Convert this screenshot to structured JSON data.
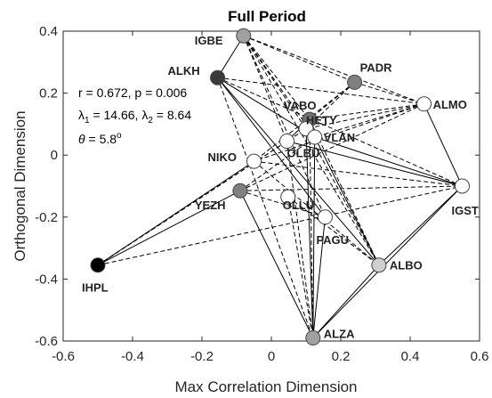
{
  "chart_data": {
    "type": "scatter",
    "title": "Full Period",
    "xlabel": "Max Correlation Dimension",
    "ylabel": "Orthogonal Dimension",
    "xlim": [
      -0.6,
      0.6
    ],
    "ylim": [
      -0.6,
      0.4
    ],
    "x_ticks": [
      -0.6,
      -0.4,
      -0.2,
      0,
      0.2,
      0.4,
      0.6
    ],
    "y_ticks": [
      -0.6,
      -0.4,
      -0.2,
      0,
      0.2,
      0.4
    ],
    "x_tick_labels": [
      "-0.6",
      "-0.4",
      "-0.2",
      "0",
      "0.2",
      "0.4",
      "0.6"
    ],
    "y_tick_labels": [
      "-0.6",
      "-0.4",
      "-0.2",
      "0",
      "0.2",
      "0.4"
    ],
    "annotations": {
      "line1": "r = 0.672, p = 0.006",
      "lambda_sym": "λ",
      "lambda1_sub": "1",
      "lambda1_val": " = 14.66, ",
      "lambda2_sub": "2",
      "lambda2_val": " = 8.64",
      "theta_sym": "θ",
      "theta_val": " = 5.8",
      "theta_sup": "o"
    },
    "points": [
      {
        "id": "IGBE",
        "x": -0.08,
        "y": 0.385,
        "fill": "#a0a0a0",
        "label_dx": -55,
        "label_dy": 10
      },
      {
        "id": "ALKH",
        "x": -0.155,
        "y": 0.25,
        "fill": "#3a3a3a",
        "label_dx": -56,
        "label_dy": -3
      },
      {
        "id": "PADR",
        "x": 0.24,
        "y": 0.235,
        "fill": "#808080",
        "label_dx": 6,
        "label_dy": -12
      },
      {
        "id": "ALMO",
        "x": 0.44,
        "y": 0.165,
        "fill": "#ffffff",
        "label_dx": 10,
        "label_dy": 5
      },
      {
        "id": "VABO",
        "x": 0.11,
        "y": 0.115,
        "fill": "#707070",
        "label_dx": -29,
        "label_dy": -11
      },
      {
        "id": "HETY",
        "x": 0.1,
        "y": 0.085,
        "fill": "#ffffff",
        "label_dx": 0,
        "label_dy": -5
      },
      {
        "id": "VLAN",
        "x": 0.125,
        "y": 0.058,
        "fill": "#ffffff",
        "label_dx": 10,
        "label_dy": 5
      },
      {
        "id": "OLBU",
        "x": 0.045,
        "y": 0.045,
        "fill": "#ffffff",
        "label_dx": 0,
        "label_dy": 18
      },
      {
        "id": "NIKO",
        "x": -0.05,
        "y": -0.02,
        "fill": "#ffffff",
        "label_dx": -52,
        "label_dy": 0
      },
      {
        "id": "IGST",
        "x": 0.55,
        "y": -0.1,
        "fill": "#ffffff",
        "label_dx": -12,
        "label_dy": 32
      },
      {
        "id": "YEZH",
        "x": -0.09,
        "y": -0.115,
        "fill": "#808080",
        "label_dx": -51,
        "label_dy": 21
      },
      {
        "id": "OLLU",
        "x": 0.048,
        "y": -0.135,
        "fill": "#ffffff",
        "label_dx": -6,
        "label_dy": 14
      },
      {
        "id": "PAGU",
        "x": 0.155,
        "y": -0.2,
        "fill": "#ffffff",
        "label_dx": -10,
        "label_dy": 30
      },
      {
        "id": "IHPL",
        "x": -0.5,
        "y": -0.355,
        "fill": "#000000",
        "label_dx": -18,
        "label_dy": 30
      },
      {
        "id": "ALBO",
        "x": 0.31,
        "y": -0.355,
        "fill": "#d0d0d0",
        "label_dx": 12,
        "label_dy": 5
      },
      {
        "id": "ALZA",
        "x": 0.12,
        "y": -0.59,
        "fill": "#a0a0a0",
        "label_dx": 12,
        "label_dy": 0
      }
    ],
    "solid_edges": [
      [
        "IGBE",
        "ALKH"
      ],
      [
        "ALKH",
        "VLAN"
      ],
      [
        "ALKH",
        "PAGU"
      ],
      [
        "ALKH",
        "ALBO"
      ],
      [
        "ALMO",
        "IGST"
      ],
      [
        "IGST",
        "ALBO"
      ],
      [
        "ALBO",
        "ALZA"
      ],
      [
        "VLAN",
        "IGST"
      ],
      [
        "VLAN",
        "ALZA"
      ],
      [
        "VLAN",
        "ALBO"
      ],
      [
        "OLBU",
        "VABO"
      ],
      [
        "OLBU",
        "IGST"
      ],
      [
        "IHPL",
        "YEZH"
      ],
      [
        "IHPL",
        "NIKO"
      ],
      [
        "YEZH",
        "ALZA"
      ],
      [
        "PAGU",
        "ALZA"
      ],
      [
        "ALZA",
        "IGST"
      ],
      [
        "HETY",
        "ALZA"
      ]
    ],
    "dashed_edges": [
      [
        "IGBE",
        "PADR"
      ],
      [
        "IGBE",
        "ALMO"
      ],
      [
        "IGBE",
        "OLBU"
      ],
      [
        "IGBE",
        "VLAN"
      ],
      [
        "IGBE",
        "HETY"
      ],
      [
        "IGBE",
        "PAGU"
      ],
      [
        "IGBE",
        "ALBO"
      ],
      [
        "IGBE",
        "VABO"
      ],
      [
        "PADR",
        "ALMO"
      ],
      [
        "PADR",
        "NIKO"
      ],
      [
        "PADR",
        "HETY"
      ],
      [
        "PADR",
        "VABO"
      ],
      [
        "ALKH",
        "ALMO"
      ],
      [
        "ALKH",
        "IGST"
      ],
      [
        "ALKH",
        "ALZA"
      ],
      [
        "ALMO",
        "NIKO"
      ],
      [
        "ALMO",
        "HETY"
      ],
      [
        "ALMO",
        "VLAN"
      ],
      [
        "ALMO",
        "YEZH"
      ],
      [
        "ALMO",
        "VABO"
      ],
      [
        "NIKO",
        "IGST"
      ],
      [
        "NIKO",
        "ALBO"
      ],
      [
        "IHPL",
        "HETY"
      ],
      [
        "IHPL",
        "OLBU"
      ],
      [
        "IHPL",
        "IGST"
      ],
      [
        "YEZH",
        "IGST"
      ],
      [
        "YEZH",
        "PAGU"
      ],
      [
        "YEZH",
        "VLAN"
      ],
      [
        "OLLU",
        "ALBO"
      ],
      [
        "OLLU",
        "ALZA"
      ],
      [
        "VABO",
        "ALZA"
      ],
      [
        "VABO",
        "ALBO"
      ],
      [
        "HETY",
        "ALBO"
      ],
      [
        "OLBU",
        "ALZA"
      ]
    ]
  }
}
